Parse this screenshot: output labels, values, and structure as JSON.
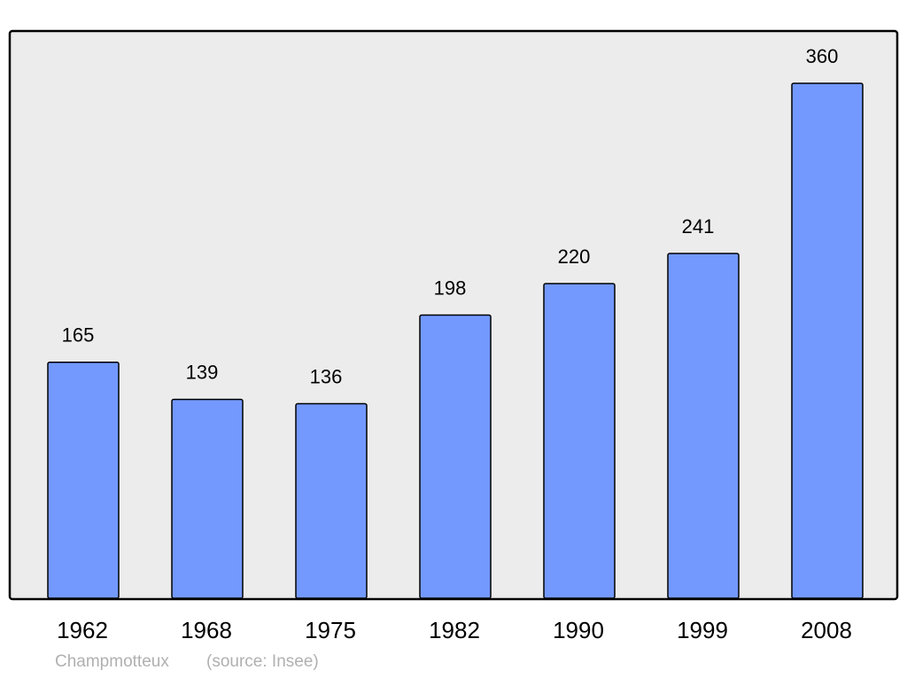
{
  "chart_data": {
    "type": "bar",
    "categories": [
      "1962",
      "1968",
      "1975",
      "1982",
      "1990",
      "1999",
      "2008"
    ],
    "values": [
      165,
      139,
      136,
      198,
      220,
      241,
      360
    ],
    "color": "#7399ff",
    "footer": "Champmotteux",
    "source": "(source: Insee)"
  }
}
